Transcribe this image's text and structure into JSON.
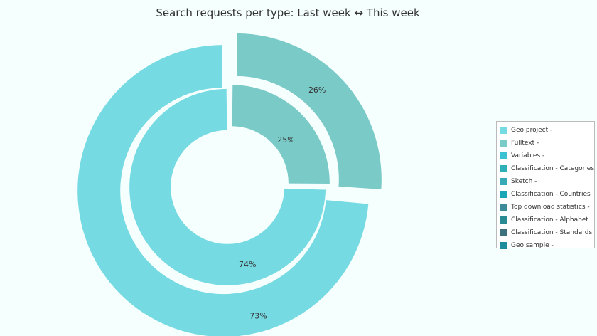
{
  "chart_data": {
    "type": "pie",
    "title": "Search requests per type: Last week ↔ This week",
    "legend_position": "right",
    "legend": [
      {
        "label": "Geo project -",
        "color": "#76dae3"
      },
      {
        "label": "Fulltext -",
        "color": "#7acac8"
      },
      {
        "label": "Variables -",
        "color": "#3ac2d2"
      },
      {
        "label": "Classification - Categories",
        "color": "#2fb0b8"
      },
      {
        "label": "Sketch -",
        "color": "#39a9b5"
      },
      {
        "label": "Classification - Countries",
        "color": "#1ba6b6"
      },
      {
        "label": "Top download statistics -",
        "color": "#3d8a99"
      },
      {
        "label": "Classification - Alphabet",
        "color": "#2a8a92"
      },
      {
        "label": "Classification - Standards",
        "color": "#3d717d"
      },
      {
        "label": "Geo sample -",
        "color": "#1f8c9c"
      }
    ],
    "rings": [
      {
        "ring": "outer",
        "slices": [
          {
            "category": "Geo project",
            "value": 73,
            "label": "73%",
            "color": "#76dae3"
          },
          {
            "category": "Fulltext",
            "value": 26,
            "label": "26%",
            "color": "#7acac8"
          }
        ]
      },
      {
        "ring": "inner",
        "slices": [
          {
            "category": "Geo project",
            "value": 74,
            "label": "74%",
            "color": "#76dae3"
          },
          {
            "category": "Fulltext",
            "value": 25,
            "label": "25%",
            "color": "#7acac8"
          }
        ]
      }
    ]
  }
}
